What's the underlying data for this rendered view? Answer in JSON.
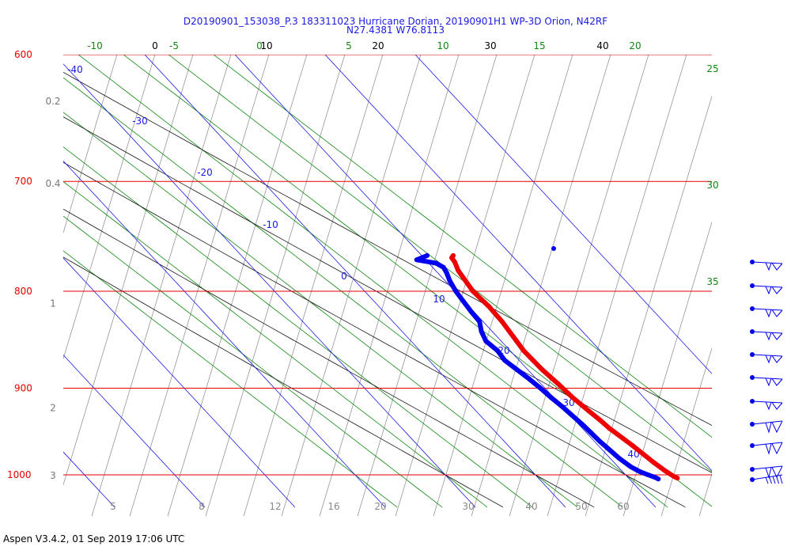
{
  "title": {
    "line1": "D20190901_153038_P.3 183311023 Hurricane Dorian, 20190901H1 WP-3D Orion, N42RF",
    "line2": "N27.4381 W76.8113"
  },
  "footer": "Aspen V3.4.2, 01 Sep 2019  17:06 UTC",
  "colors": {
    "isobar": "#e60000",
    "isotherm": "#1a1ae6",
    "dry_adiabat": "#111111",
    "moist_adiabat": "#118811",
    "mixing_ratio": "#888888",
    "temperature": "#ee0000",
    "dewpoint": "#0000ee"
  },
  "chart_data": {
    "type": "skew-t",
    "pressure_axis_label_values": [
      "600",
      "700",
      "800",
      "900",
      "1000"
    ],
    "pressure_levels_hpa": [
      600,
      700,
      800,
      900,
      1000
    ],
    "pressure_range_hpa": [
      590,
      1025
    ],
    "left_secondary_labels": [
      "0.2",
      "0.4",
      "1",
      "2",
      "3"
    ],
    "left_secondary_label_pressures": [
      635,
      702,
      812,
      922,
      1001
    ],
    "isotherm_labels": [
      "-40",
      "-30",
      "-20",
      "-10",
      "0",
      "10",
      "20",
      "30",
      "40"
    ],
    "isotherms_c": [
      -40,
      -30,
      -20,
      -10,
      0,
      10,
      20,
      30,
      40
    ],
    "dry_adiabat_labels": [
      "0",
      "10",
      "20",
      "30",
      "40"
    ],
    "dry_adiabats_theta_c": [
      0,
      10,
      20,
      30,
      40
    ],
    "moist_adiabat_labels": [
      "-10",
      "-5",
      "0",
      "5",
      "10",
      "15",
      "20",
      "25",
      "30",
      "35"
    ],
    "moist_adiabats_c": [
      -10,
      -5,
      0,
      5,
      10,
      15,
      20,
      25,
      30,
      35
    ],
    "mixing_ratio_labels": [
      "5",
      "8",
      "12",
      "16",
      "20",
      "30",
      "40",
      "50",
      "60"
    ],
    "series": [
      {
        "name": "Temperature",
        "points": [
          {
            "p": 766,
            "t": 23.5
          },
          {
            "p": 768,
            "t": 23.1
          },
          {
            "p": 772,
            "t": 23.0
          },
          {
            "p": 780,
            "t": 22.5
          },
          {
            "p": 792,
            "t": 22.2
          },
          {
            "p": 800,
            "t": 22.0
          },
          {
            "p": 815,
            "t": 22.2
          },
          {
            "p": 830,
            "t": 22.1
          },
          {
            "p": 845,
            "t": 21.8
          },
          {
            "p": 860,
            "t": 21.5
          },
          {
            "p": 880,
            "t": 21.6
          },
          {
            "p": 895,
            "t": 21.9
          },
          {
            "p": 910,
            "t": 22.1
          },
          {
            "p": 925,
            "t": 22.5
          },
          {
            "p": 935,
            "t": 22.8
          },
          {
            "p": 945,
            "t": 23.0
          },
          {
            "p": 955,
            "t": 23.4
          },
          {
            "p": 965,
            "t": 23.8
          },
          {
            "p": 975,
            "t": 24.1
          },
          {
            "p": 985,
            "t": 24.4
          },
          {
            "p": 995,
            "t": 24.8
          },
          {
            "p": 1002,
            "t": 25.2
          },
          {
            "p": 1004,
            "t": 25.4
          }
        ]
      },
      {
        "name": "Dewpoint",
        "points": [
          {
            "p": 766,
            "t": 20.6
          },
          {
            "p": 770,
            "t": 19.0
          },
          {
            "p": 773,
            "t": 20.8
          },
          {
            "p": 777,
            "t": 21.2
          },
          {
            "p": 782,
            "t": 21.0
          },
          {
            "p": 790,
            "t": 20.5
          },
          {
            "p": 800,
            "t": 20.1
          },
          {
            "p": 810,
            "t": 19.9
          },
          {
            "p": 820,
            "t": 19.7
          },
          {
            "p": 830,
            "t": 19.6
          },
          {
            "p": 840,
            "t": 18.8
          },
          {
            "p": 850,
            "t": 18.3
          },
          {
            "p": 860,
            "t": 18.6
          },
          {
            "p": 870,
            "t": 18.4
          },
          {
            "p": 880,
            "t": 18.8
          },
          {
            "p": 890,
            "t": 19.2
          },
          {
            "p": 900,
            "t": 19.5
          },
          {
            "p": 910,
            "t": 19.7
          },
          {
            "p": 920,
            "t": 20.0
          },
          {
            "p": 930,
            "t": 20.2
          },
          {
            "p": 940,
            "t": 20.4
          },
          {
            "p": 950,
            "t": 20.5
          },
          {
            "p": 960,
            "t": 20.6
          },
          {
            "p": 970,
            "t": 20.8
          },
          {
            "p": 980,
            "t": 21.0
          },
          {
            "p": 990,
            "t": 21.4
          },
          {
            "p": 996,
            "t": 21.9
          },
          {
            "p": 1000,
            "t": 22.5
          },
          {
            "p": 1003,
            "t": 23.0
          },
          {
            "p": 1005,
            "t": 23.2
          }
        ]
      }
    ],
    "wind_barb_count": 10
  }
}
